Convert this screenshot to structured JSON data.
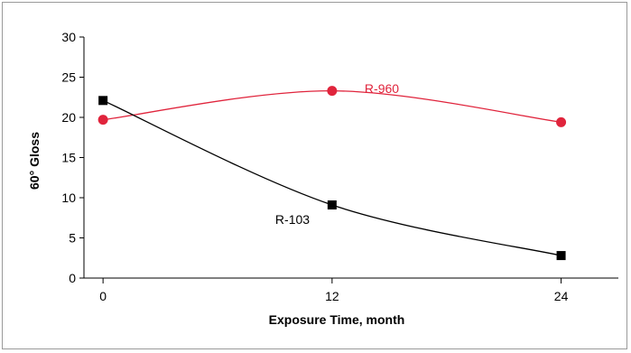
{
  "chart_data": {
    "type": "line",
    "title": "",
    "xlabel": "Exposure Time, month",
    "ylabel": "60° Gloss",
    "xlim": [
      -1,
      27
    ],
    "ylim": [
      0,
      30
    ],
    "xticks": [
      0,
      12,
      24
    ],
    "yticks": [
      0,
      5,
      10,
      15,
      20,
      25,
      30
    ],
    "grid": false,
    "series": [
      {
        "name": "R-960",
        "marker": "circle",
        "color": "#e0243c",
        "x": [
          0,
          12,
          24
        ],
        "values": [
          19.7,
          23.3,
          19.4
        ]
      },
      {
        "name": "R-103",
        "marker": "square",
        "color": "#000000",
        "x": [
          0,
          12,
          24
        ],
        "values": [
          22.1,
          9.1,
          2.8
        ]
      }
    ]
  }
}
